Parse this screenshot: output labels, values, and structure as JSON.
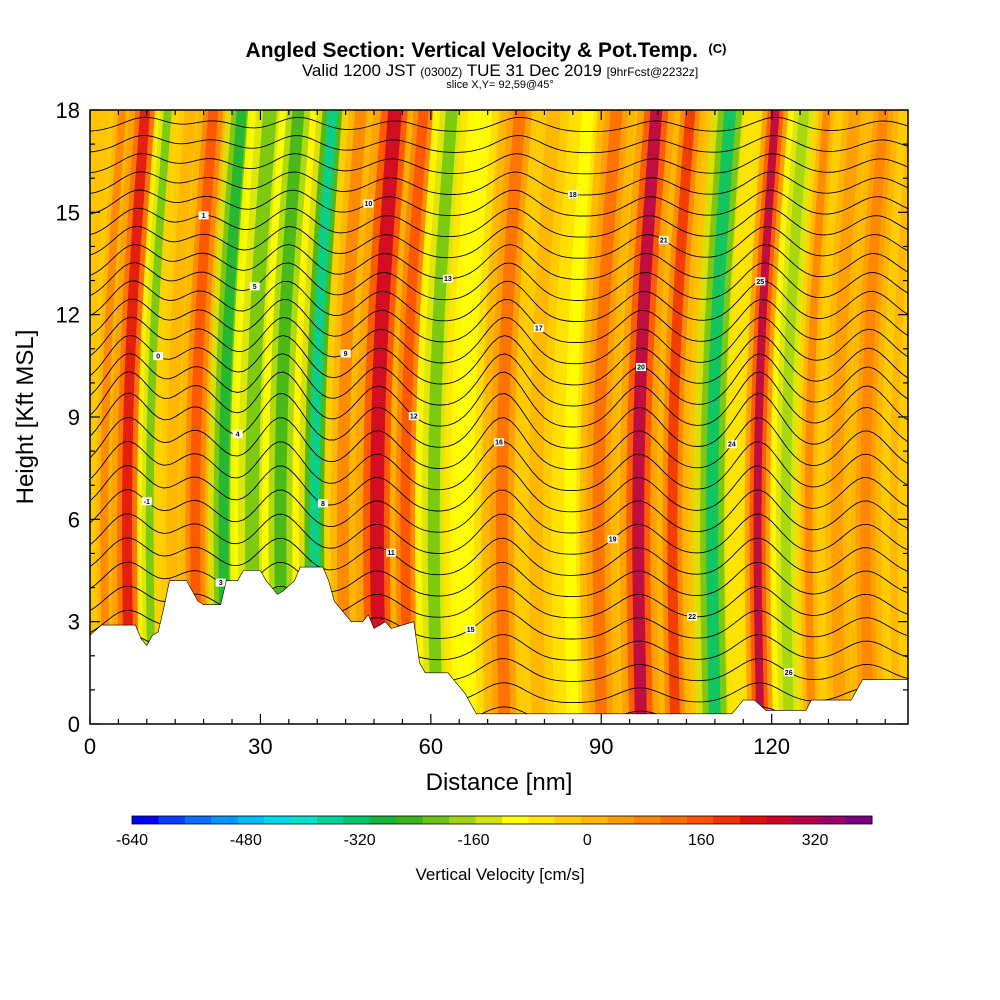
{
  "chart_data": {
    "type": "heatmap",
    "title": "Angled Section: Vertical Velocity & Pot.Temp.",
    "title_unit": "(C)",
    "subtitle": {
      "valid": "Valid 1200 JST",
      "utc": "(0300Z)",
      "date": "TUE 31 Dec 2019",
      "forecast": "[9hrFcst@2232z]"
    },
    "slice_label": "slice X,Y= 92,59@45°",
    "xlabel": "Distance [nm]",
    "ylabel": "Height [Kft MSL]",
    "xlim": [
      0,
      144
    ],
    "ylim": [
      0,
      18
    ],
    "x_ticks": [
      0,
      30,
      60,
      90,
      120
    ],
    "x_ticklabels": [
      "0",
      "30",
      "60",
      "90",
      "120"
    ],
    "y_ticks": [
      0,
      3,
      6,
      9,
      12,
      15,
      18
    ],
    "y_ticklabels": [
      "0",
      "3",
      "6",
      "9",
      "12",
      "15",
      "18"
    ],
    "colorbar": {
      "title": "Vertical Velocity [cm/s]",
      "min": -640,
      "max": 400,
      "step": 40,
      "tick_values": [
        -640,
        -480,
        -320,
        -160,
        0,
        160,
        320
      ],
      "tick_labels": [
        "-640",
        "-480",
        "-320",
        "-160",
        "0",
        "160",
        "320"
      ],
      "colors": [
        "#0000ff",
        "#0a3cff",
        "#0a6eff",
        "#0096ff",
        "#00bcff",
        "#00d8ee",
        "#00e4c8",
        "#00d49c",
        "#00c46c",
        "#16b43a",
        "#3ab41a",
        "#6cc412",
        "#a0d412",
        "#d4e40a",
        "#ffff00",
        "#ffe400",
        "#ffcc00",
        "#ffb400",
        "#ff9c00",
        "#ff8400",
        "#ff6c00",
        "#ff5000",
        "#f23000",
        "#e01010",
        "#cc0028",
        "#b4004a",
        "#9a0066",
        "#780080"
      ]
    },
    "velocity_bands": [
      {
        "x": 3,
        "w": 2.0,
        "v": 120
      },
      {
        "x": 7,
        "w": 2.5,
        "v": 300
      },
      {
        "x": 11,
        "w": 2.0,
        "v": -200
      },
      {
        "x": 15,
        "w": 3.0,
        "v": 40
      },
      {
        "x": 19,
        "w": 2.5,
        "v": 220
      },
      {
        "x": 24,
        "w": 2.5,
        "v": -280
      },
      {
        "x": 29,
        "w": 3.5,
        "v": -180
      },
      {
        "x": 34,
        "w": 3.0,
        "v": -240
      },
      {
        "x": 40,
        "w": 2.5,
        "v": -360
      },
      {
        "x": 45,
        "w": 3.0,
        "v": 120
      },
      {
        "x": 51,
        "w": 3.5,
        "v": 340
      },
      {
        "x": 56,
        "w": 2.5,
        "v": 200
      },
      {
        "x": 61,
        "w": 3.0,
        "v": -200
      },
      {
        "x": 66,
        "w": 3.0,
        "v": -80
      },
      {
        "x": 73,
        "w": 3.0,
        "v": 160
      },
      {
        "x": 79,
        "w": 3.5,
        "v": 40
      },
      {
        "x": 85,
        "w": 3.0,
        "v": -60
      },
      {
        "x": 90,
        "w": 3.0,
        "v": 160
      },
      {
        "x": 97,
        "w": 3.0,
        "v": 380
      },
      {
        "x": 103,
        "w": 2.5,
        "v": 240
      },
      {
        "x": 110,
        "w": 3.0,
        "v": -300
      },
      {
        "x": 114,
        "w": 1.5,
        "v": -40
      },
      {
        "x": 118,
        "w": 2.0,
        "v": 380
      },
      {
        "x": 123,
        "w": 2.5,
        "v": -140
      },
      {
        "x": 127,
        "w": 2.0,
        "v": 120
      },
      {
        "x": 132,
        "w": 3.0,
        "v": 80
      },
      {
        "x": 137,
        "w": 2.5,
        "v": 140
      },
      {
        "x": 142,
        "w": 2.0,
        "v": 60
      }
    ],
    "terrain": [
      [
        0,
        2.6
      ],
      [
        2,
        2.9
      ],
      [
        8,
        2.9
      ],
      [
        9,
        2.5
      ],
      [
        10,
        2.3
      ],
      [
        11,
        2.6
      ],
      [
        12,
        2.7
      ],
      [
        13,
        3.4
      ],
      [
        14,
        4.2
      ],
      [
        17,
        4.2
      ],
      [
        18,
        3.9
      ],
      [
        19,
        3.6
      ],
      [
        20,
        3.5
      ],
      [
        23,
        3.5
      ],
      [
        24,
        4.2
      ],
      [
        26,
        4.2
      ],
      [
        27,
        4.5
      ],
      [
        30,
        4.5
      ],
      [
        31,
        4.2
      ],
      [
        33,
        3.8
      ],
      [
        34,
        3.9
      ],
      [
        36,
        4.2
      ],
      [
        37,
        4.6
      ],
      [
        41,
        4.6
      ],
      [
        42,
        4.2
      ],
      [
        43,
        3.6
      ],
      [
        46,
        3.0
      ],
      [
        48,
        3.0
      ],
      [
        49,
        3.2
      ],
      [
        50,
        2.8
      ],
      [
        52,
        3.0
      ],
      [
        53,
        2.8
      ],
      [
        57,
        3.0
      ],
      [
        58,
        1.8
      ],
      [
        59,
        1.5
      ],
      [
        63,
        1.5
      ],
      [
        64,
        1.3
      ],
      [
        66,
        0.9
      ],
      [
        67,
        0.6
      ],
      [
        68,
        0.3
      ],
      [
        75,
        0.3
      ],
      [
        80,
        0.3
      ],
      [
        100,
        0.3
      ],
      [
        110,
        0.3
      ],
      [
        113,
        0.3
      ],
      [
        115,
        0.7
      ],
      [
        117,
        0.7
      ],
      [
        119,
        0.4
      ],
      [
        126,
        0.4
      ],
      [
        127,
        0.7
      ],
      [
        134,
        0.7
      ],
      [
        136,
        1.3
      ],
      [
        144,
        1.3
      ]
    ],
    "contour_levels": [
      -3,
      -2,
      -1,
      0,
      1,
      2,
      3,
      4,
      5,
      6,
      7,
      8,
      9,
      10,
      11,
      12,
      13,
      14,
      15,
      16,
      17,
      18,
      19,
      20,
      21,
      22,
      23,
      24,
      25,
      26
    ],
    "contour_label_values": [
      "-2",
      "-1",
      "0",
      "1",
      "3",
      "4",
      "5",
      "6",
      "8",
      "9",
      "10",
      "11",
      "12",
      "13",
      "15",
      "16",
      "17",
      "18",
      "19",
      "20",
      "21",
      "22",
      "24",
      "25",
      "26"
    ]
  }
}
